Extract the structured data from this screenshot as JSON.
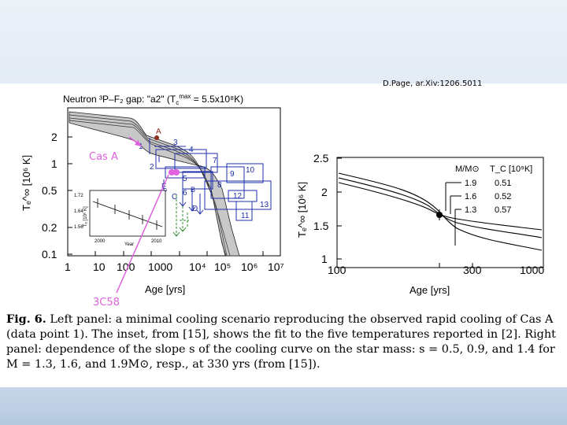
{
  "citation": "D.Page, ar.Xiv:1206.5011",
  "annotations": {
    "cas_a": "Cas A",
    "threec58": "3C58"
  },
  "left_panel": {
    "title_prefix": "Neutron ",
    "title_state": "³P–F₂",
    "title_gap": " gap: \"a2\" (T",
    "title_sub": "c",
    "title_sup": "max",
    "title_suffix": " = 5.5x10⁸K)",
    "ylabel": "Tₑ^∞ [10⁶ K]",
    "y_ticks": [
      "2",
      "1",
      "0.5",
      "0.2",
      "0.1"
    ],
    "x_ticks": [
      "1",
      "10",
      "100",
      "1000",
      "10⁴",
      "10⁵",
      "10⁶",
      "10⁷"
    ],
    "xlabel": "Age [yrs]",
    "point_labels": [
      "A",
      "1",
      "2",
      "3",
      "4",
      "5",
      "6",
      "7",
      "8",
      "9",
      "10",
      "11",
      "12",
      "13",
      "B",
      "C",
      "D",
      "E"
    ],
    "inset": {
      "ylabel": "Tₑ [10⁶ K]",
      "y_ticks": [
        "1.72",
        "1.64",
        "1.56"
      ],
      "x_ticks": [
        "2000",
        "2010"
      ],
      "xlabel": "Year"
    }
  },
  "right_panel": {
    "ylabel": "Tₑ^∞ [10⁶ K]",
    "y_ticks": [
      "2.5",
      "2",
      "1.5",
      "1"
    ],
    "x_ticks": [
      "100",
      "300",
      "1000"
    ],
    "xlabel": "Age [yrs]",
    "legend": {
      "header_mass": "M/M⊙",
      "header_tc": "T_C [10⁹K]",
      "rows": [
        {
          "mass": "1.9",
          "tc": "0.51"
        },
        {
          "mass": "1.6",
          "tc": "0.52"
        },
        {
          "mass": "1.3",
          "tc": "0.57"
        }
      ]
    }
  },
  "caption": {
    "lead": "Fig. 6.",
    "text": " Left panel: a minimal cooling scenario reproducing the observed rapid cooling of Cas A (data point 1). The inset, from [15], shows the fit to the five temperatures reported in [2]. Right panel: dependence of the slope s of the cooling curve on the star mass: s = 0.5, 0.9, and 1.4 for M = 1.3, 1.6, and 1.9M⊙, resp., at 330 yrs (from [15])."
  },
  "colors": {
    "data_blue": "#1f2fa8",
    "green": "#2e8b2e",
    "pink": "#e060e0",
    "band": "#c8c8c8"
  }
}
